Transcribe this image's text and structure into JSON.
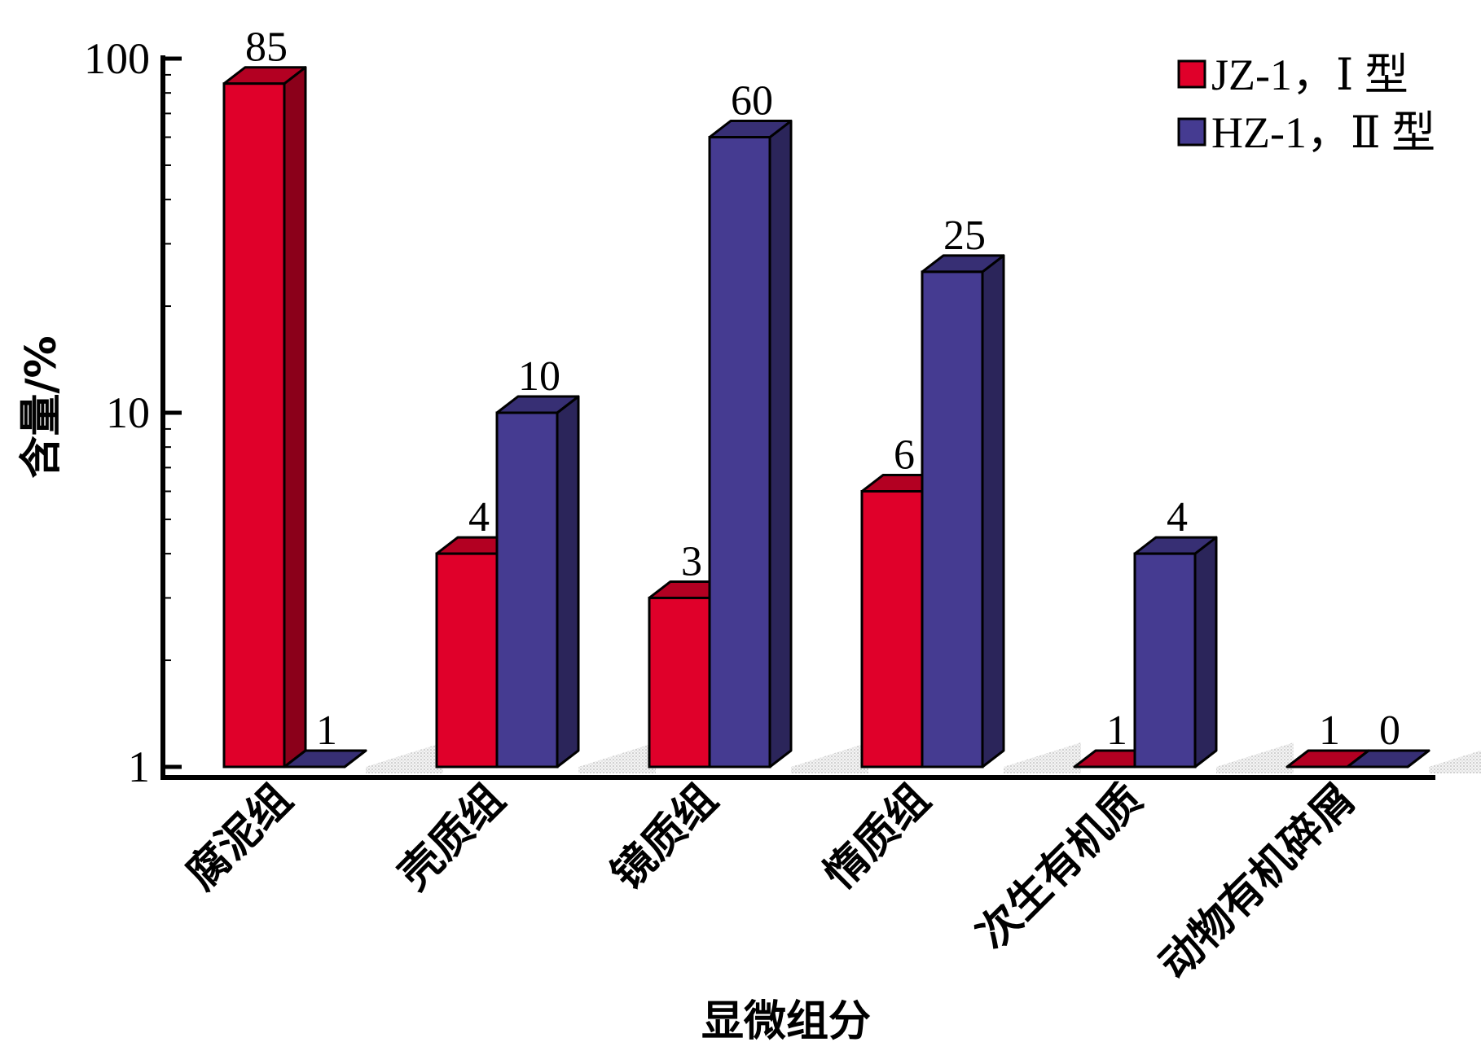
{
  "chart_data": {
    "type": "bar",
    "style": "3d-clustered",
    "scale": "log",
    "ylim": [
      1,
      100
    ],
    "yticks": [
      "1",
      "10",
      "100"
    ],
    "xlabel": "显微组分",
    "ylabel": "含量/%",
    "legend_position": "top-right",
    "categories": [
      "腐泥组",
      "壳质组",
      "镜质组",
      "惰质组",
      "次生有机质",
      "动物有机碎屑"
    ],
    "series": [
      {
        "name": "JZ-1，Ⅰ 型",
        "color": "#e0002a",
        "values": [
          85,
          4,
          3,
          6,
          1,
          1
        ],
        "labels": [
          "85",
          "4",
          "3",
          "6",
          "1",
          "1"
        ]
      },
      {
        "name": "HZ-1，Ⅱ 型",
        "color": "#453b91",
        "values": [
          1,
          10,
          60,
          25,
          4,
          0
        ],
        "labels": [
          "1",
          "10",
          "60",
          "25",
          "4",
          "0"
        ]
      }
    ]
  }
}
